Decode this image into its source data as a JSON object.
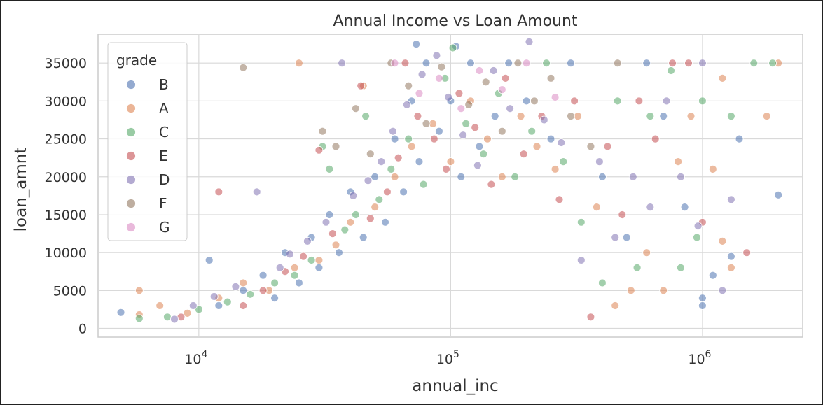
{
  "chart_data": {
    "type": "scatter",
    "title": "Annual Income vs Loan Amount",
    "xlabel": "annual_inc",
    "ylabel": "loan_amnt",
    "x_scale": "log",
    "xlim": [
      3980,
      2500000
    ],
    "ylim": [
      -1150,
      38800
    ],
    "x_ticks": [
      10000,
      100000,
      1000000
    ],
    "x_tick_labels": [
      {
        "base": "10",
        "exp": "4"
      },
      {
        "base": "10",
        "exp": "5"
      },
      {
        "base": "10",
        "exp": "6"
      }
    ],
    "y_ticks": [
      0,
      5000,
      10000,
      15000,
      20000,
      25000,
      30000,
      35000
    ],
    "y_tick_labels": [
      "0",
      "5000",
      "10000",
      "15000",
      "20000",
      "25000",
      "30000",
      "35000"
    ],
    "grid": true,
    "legend": {
      "title": "grade",
      "placement": "top-left",
      "entries": [
        {
          "label": "B",
          "color": "#4c72b0"
        },
        {
          "label": "A",
          "color": "#dd8452"
        },
        {
          "label": "C",
          "color": "#55a868"
        },
        {
          "label": "E",
          "color": "#c44e52"
        },
        {
          "label": "D",
          "color": "#8172b3"
        },
        {
          "label": "F",
          "color": "#937860"
        },
        {
          "label": "G",
          "color": "#da8bc3"
        }
      ]
    },
    "series": [
      {
        "name": "B",
        "color": "#4c72b0",
        "points": [
          [
            4900,
            2100
          ],
          [
            11000,
            9000
          ],
          [
            12000,
            3000
          ],
          [
            15000,
            5000
          ],
          [
            18000,
            7000
          ],
          [
            20000,
            4000
          ],
          [
            22000,
            10000
          ],
          [
            25000,
            6000
          ],
          [
            28000,
            12000
          ],
          [
            30000,
            8000
          ],
          [
            33000,
            15000
          ],
          [
            36000,
            10000
          ],
          [
            40000,
            18000
          ],
          [
            45000,
            12000
          ],
          [
            50000,
            20000
          ],
          [
            55000,
            14000
          ],
          [
            60000,
            25000
          ],
          [
            65000,
            18000
          ],
          [
            70000,
            30000
          ],
          [
            75000,
            22000
          ],
          [
            80000,
            35000
          ],
          [
            90000,
            26000
          ],
          [
            100000,
            30000
          ],
          [
            110000,
            20000
          ],
          [
            120000,
            35000
          ],
          [
            130000,
            24000
          ],
          [
            150000,
            28000
          ],
          [
            170000,
            35000
          ],
          [
            200000,
            30000
          ],
          [
            250000,
            25000
          ],
          [
            300000,
            35000
          ],
          [
            400000,
            20000
          ],
          [
            500000,
            12000
          ],
          [
            600000,
            35000
          ],
          [
            700000,
            28000
          ],
          [
            850000,
            16000
          ],
          [
            1000000,
            3000
          ],
          [
            1000000,
            4000
          ],
          [
            1100000,
            7000
          ],
          [
            1300000,
            9500
          ],
          [
            1400000,
            25000
          ],
          [
            2000000,
            17600
          ],
          [
            73000,
            37500
          ],
          [
            105000,
            37200
          ]
        ]
      },
      {
        "name": "A",
        "color": "#dd8452",
        "points": [
          [
            5800,
            5000
          ],
          [
            5800,
            1800
          ],
          [
            7000,
            3000
          ],
          [
            9000,
            2000
          ],
          [
            12000,
            4000
          ],
          [
            15000,
            6000
          ],
          [
            19000,
            5000
          ],
          [
            25000,
            35000
          ],
          [
            24000,
            8000
          ],
          [
            30000,
            9000
          ],
          [
            35000,
            11000
          ],
          [
            40000,
            14000
          ],
          [
            45000,
            32000
          ],
          [
            50000,
            16000
          ],
          [
            60000,
            20000
          ],
          [
            70000,
            24000
          ],
          [
            85000,
            27000
          ],
          [
            100000,
            22000
          ],
          [
            120000,
            30000
          ],
          [
            140000,
            25000
          ],
          [
            160000,
            20000
          ],
          [
            190000,
            28000
          ],
          [
            220000,
            24000
          ],
          [
            260000,
            21000
          ],
          [
            320000,
            28000
          ],
          [
            380000,
            16000
          ],
          [
            450000,
            3000
          ],
          [
            520000,
            5000
          ],
          [
            600000,
            10000
          ],
          [
            700000,
            5000
          ],
          [
            800000,
            22000
          ],
          [
            900000,
            28000
          ],
          [
            1100000,
            21000
          ],
          [
            1200000,
            33000
          ],
          [
            1300000,
            8000
          ],
          [
            1800000,
            28000
          ],
          [
            2000000,
            35000
          ],
          [
            1200000,
            11500
          ]
        ]
      },
      {
        "name": "C",
        "color": "#55a868",
        "points": [
          [
            5800,
            1300
          ],
          [
            7500,
            1500
          ],
          [
            10000,
            2500
          ],
          [
            13000,
            3500
          ],
          [
            16000,
            4500
          ],
          [
            20000,
            6000
          ],
          [
            24000,
            7000
          ],
          [
            28000,
            9000
          ],
          [
            31000,
            24000
          ],
          [
            33000,
            21000
          ],
          [
            38000,
            13000
          ],
          [
            42000,
            15000
          ],
          [
            46000,
            28000
          ],
          [
            52000,
            17000
          ],
          [
            58000,
            21000
          ],
          [
            68000,
            25000
          ],
          [
            78000,
            19000
          ],
          [
            95000,
            33000
          ],
          [
            102000,
            37000
          ],
          [
            115000,
            27000
          ],
          [
            135000,
            23000
          ],
          [
            155000,
            31000
          ],
          [
            180000,
            20000
          ],
          [
            210000,
            26000
          ],
          [
            240000,
            35000
          ],
          [
            280000,
            22000
          ],
          [
            330000,
            14000
          ],
          [
            400000,
            6000
          ],
          [
            460000,
            30000
          ],
          [
            550000,
            8000
          ],
          [
            620000,
            28000
          ],
          [
            750000,
            34000
          ],
          [
            820000,
            8000
          ],
          [
            950000,
            12000
          ],
          [
            1000000,
            30000
          ],
          [
            1300000,
            28000
          ],
          [
            1600000,
            35000
          ],
          [
            1900000,
            35000
          ]
        ]
      },
      {
        "name": "E",
        "color": "#c44e52",
        "points": [
          [
            8500,
            1500
          ],
          [
            12000,
            18000
          ],
          [
            15000,
            3000
          ],
          [
            18000,
            5000
          ],
          [
            22000,
            7500
          ],
          [
            26000,
            9500
          ],
          [
            30000,
            23500
          ],
          [
            34000,
            12500
          ],
          [
            44000,
            32000
          ],
          [
            48000,
            14500
          ],
          [
            56000,
            18000
          ],
          [
            62000,
            22500
          ],
          [
            66000,
            35000
          ],
          [
            74000,
            28000
          ],
          [
            86000,
            25000
          ],
          [
            96000,
            21000
          ],
          [
            108000,
            31000
          ],
          [
            125000,
            26500
          ],
          [
            145000,
            19000
          ],
          [
            165000,
            33000
          ],
          [
            195000,
            23000
          ],
          [
            230000,
            28000
          ],
          [
            270000,
            17000
          ],
          [
            310000,
            30000
          ],
          [
            360000,
            1500
          ],
          [
            420000,
            24000
          ],
          [
            480000,
            15000
          ],
          [
            560000,
            30000
          ],
          [
            650000,
            25000
          ],
          [
            760000,
            35000
          ],
          [
            880000,
            35000
          ],
          [
            1000000,
            14000
          ],
          [
            1500000,
            10000
          ]
        ]
      },
      {
        "name": "D",
        "color": "#8172b3",
        "points": [
          [
            8000,
            1200
          ],
          [
            9500,
            3000
          ],
          [
            11500,
            4200
          ],
          [
            14000,
            5500
          ],
          [
            17000,
            18000
          ],
          [
            21000,
            8000
          ],
          [
            23000,
            9800
          ],
          [
            27000,
            11500
          ],
          [
            32000,
            14000
          ],
          [
            37000,
            35000
          ],
          [
            41000,
            17500
          ],
          [
            47000,
            19500
          ],
          [
            53000,
            22000
          ],
          [
            59000,
            26000
          ],
          [
            67000,
            29500
          ],
          [
            77000,
            33500
          ],
          [
            88000,
            36000
          ],
          [
            98000,
            30500
          ],
          [
            112000,
            25500
          ],
          [
            128000,
            21500
          ],
          [
            148000,
            34000
          ],
          [
            172000,
            29000
          ],
          [
            205000,
            37800
          ],
          [
            235000,
            27500
          ],
          [
            275000,
            24500
          ],
          [
            330000,
            9000
          ],
          [
            390000,
            22000
          ],
          [
            450000,
            12000
          ],
          [
            530000,
            20000
          ],
          [
            620000,
            16000
          ],
          [
            720000,
            30000
          ],
          [
            820000,
            20000
          ],
          [
            960000,
            13500
          ],
          [
            1000000,
            35000
          ],
          [
            1200000,
            5000
          ],
          [
            1300000,
            17000
          ]
        ]
      },
      {
        "name": "F",
        "color": "#937860",
        "points": [
          [
            15000,
            34400
          ],
          [
            31000,
            26000
          ],
          [
            35000,
            24000
          ],
          [
            42000,
            29000
          ],
          [
            48000,
            23000
          ],
          [
            58000,
            35000
          ],
          [
            68000,
            32000
          ],
          [
            80000,
            27000
          ],
          [
            92000,
            34500
          ],
          [
            118000,
            29500
          ],
          [
            138000,
            32500
          ],
          [
            160000,
            26000
          ],
          [
            185000,
            35000
          ],
          [
            215000,
            30000
          ],
          [
            250000,
            33000
          ],
          [
            300000,
            28000
          ],
          [
            360000,
            24000
          ],
          [
            460000,
            35000
          ]
        ]
      },
      {
        "name": "G",
        "color": "#da8bc3",
        "points": [
          [
            60000,
            35000
          ],
          [
            75000,
            31000
          ],
          [
            90000,
            33000
          ],
          [
            110000,
            29000
          ],
          [
            130000,
            34000
          ],
          [
            160000,
            31500
          ],
          [
            200000,
            35000
          ],
          [
            260000,
            30500
          ]
        ]
      }
    ]
  }
}
